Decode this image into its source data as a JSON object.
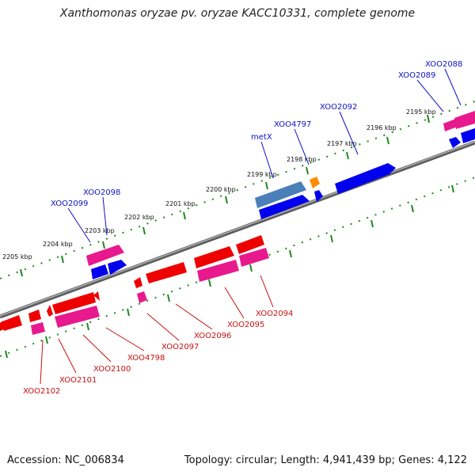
{
  "title": "Xanthomonas oryzae pv. oryzae KACC10331, complete genome",
  "footer": {
    "accession": "Accession: NC_006834",
    "stats": "Topology: circular; Length: 4,941,439 bp; Genes: 4,122"
  },
  "colors": {
    "backbone": "#7a7a7a",
    "tick_track": "#1f8a1f",
    "forward_gene": "#0000ee",
    "forward_pink": "#e8198c",
    "forward_rna": "#4a7fb8",
    "forward_orange": "#ff8c00",
    "reverse_gene": "#ee0000",
    "reverse_pink": "#e8198c"
  },
  "kbp_labels": [
    "2195 kbp",
    "2196 kbp",
    "2197 kbp",
    "2198 kbp",
    "2199 kbp",
    "2200 kbp",
    "2201 kbp",
    "2202 kbp",
    "2203 kbp",
    "2204 kbp",
    "2205 kbp"
  ],
  "forward_labels": [
    "XOO2088",
    "XOO2089",
    "XOO2092",
    "XOO4797",
    "metX",
    "XOO2098",
    "XOO2099"
  ],
  "reverse_labels": [
    "XOO2094",
    "XOO2095",
    "XOO2096",
    "XOO2097",
    "XOO4798",
    "XOO2100",
    "XOO2101",
    "XOO2102"
  ]
}
